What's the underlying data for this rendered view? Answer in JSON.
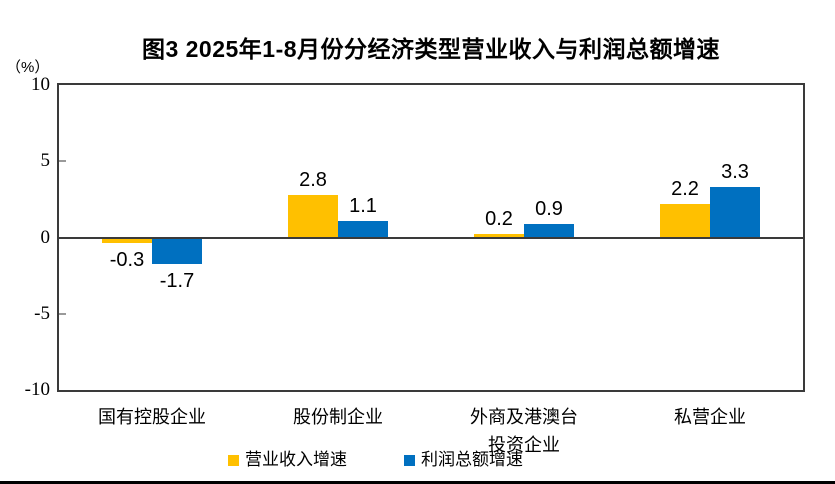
{
  "chart_data": {
    "type": "bar",
    "title": "图3 2025年1-8月份分经济类型营业收入与利润总额增速",
    "y_unit": "（%）",
    "categories": [
      "国有控股企业",
      "股份制企业",
      "外商及港澳台\n投资企业",
      "私营企业"
    ],
    "series": [
      {
        "name": "营业收入增速",
        "color": "#FFC000",
        "values": [
          -0.3,
          2.8,
          0.2,
          2.2
        ]
      },
      {
        "name": "利润总额增速",
        "color": "#0070C0",
        "values": [
          -1.7,
          1.1,
          0.9,
          3.3
        ]
      }
    ],
    "ylim": [
      -10,
      10
    ],
    "yticks": [
      10,
      5,
      0,
      -5,
      -10
    ],
    "zero_line": true,
    "grid": false,
    "value_labels": true,
    "legend_position": "bottom"
  }
}
